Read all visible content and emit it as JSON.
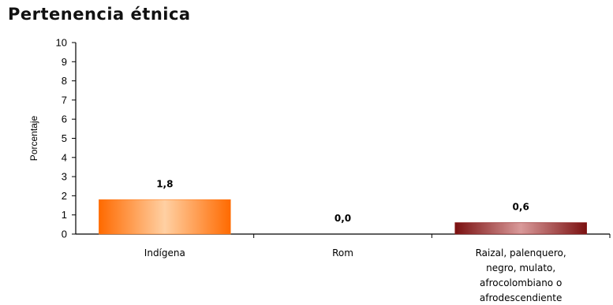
{
  "chart_data": {
    "type": "bar",
    "title": "Pertenencia étnica",
    "xlabel": "",
    "ylabel": "Porcentaje",
    "ylim": [
      0,
      10
    ],
    "yticks": [
      "0",
      "1",
      "2",
      "3",
      "4",
      "5",
      "6",
      "7",
      "8",
      "9",
      "10"
    ],
    "grid": false,
    "categories": [
      [
        "Indígena"
      ],
      [
        "Rom"
      ],
      [
        "Raizal, palenquero,",
        "negro, mulato,",
        "afrocolombiano o",
        "afrodescendiente"
      ]
    ],
    "values": [
      1.8,
      0.0,
      0.6
    ],
    "data_labels": [
      "1,8",
      "0,0",
      "0,6"
    ],
    "colors": [
      "#ff7a1a",
      "#ffffff",
      "#8e1d1d"
    ]
  }
}
